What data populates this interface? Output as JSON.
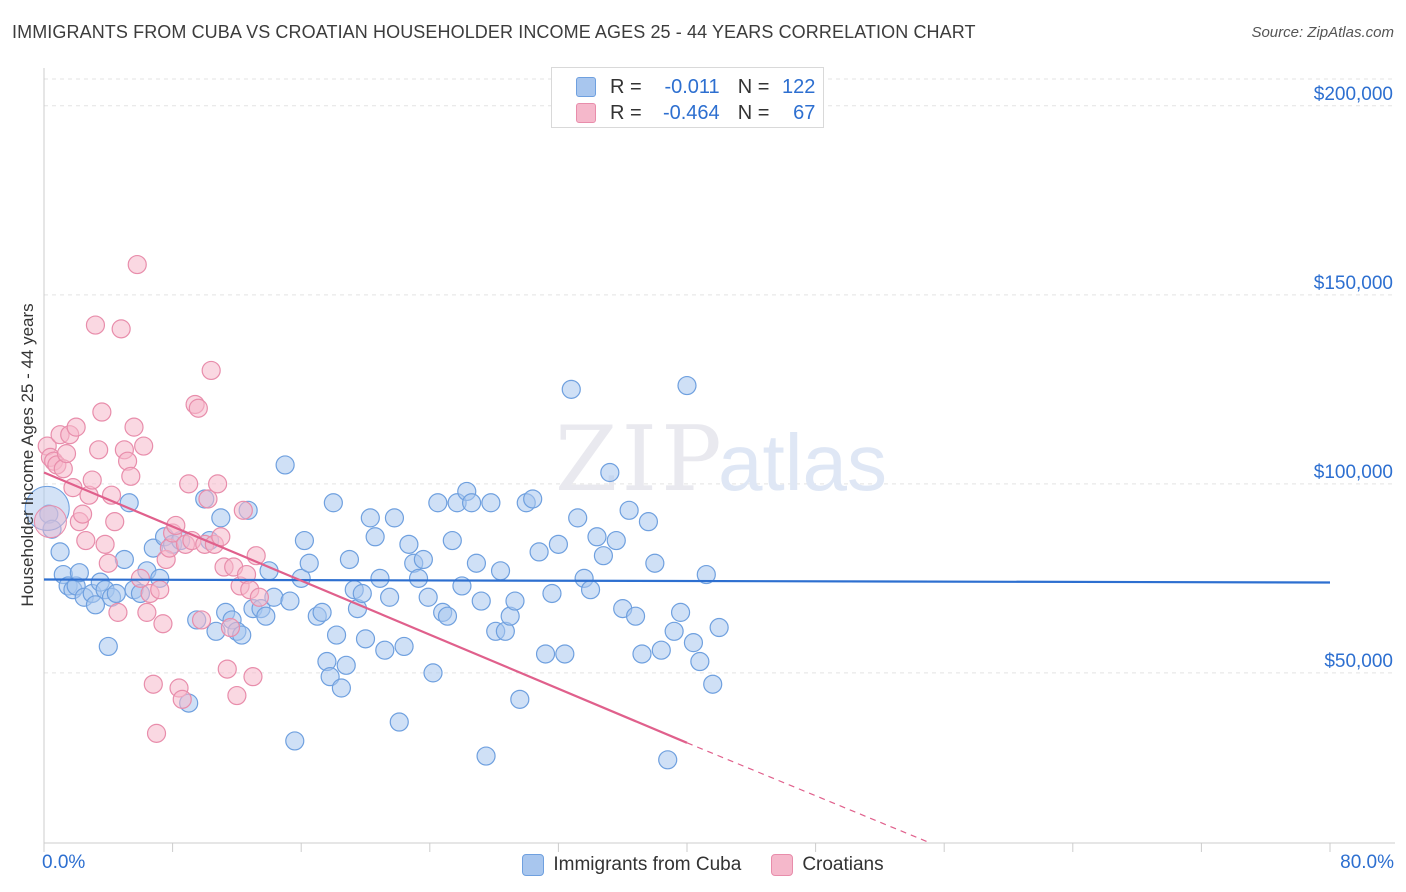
{
  "title": "IMMIGRANTS FROM CUBA VS CROATIAN HOUSEHOLDER INCOME AGES 25 - 44 YEARS CORRELATION CHART",
  "source": "Source: ZipAtlas.com",
  "watermark": {
    "zip": "ZIP",
    "atlas": "atlas"
  },
  "colors": {
    "blue": "#2d6fd0",
    "blue_fill": "#a8c6ee",
    "blue_stroke": "#6fa0df",
    "pink": "#e0608c",
    "pink_fill": "#f5b8cb",
    "pink_stroke": "#e88dab",
    "grid": "#e3e3e3"
  },
  "legend": {
    "rows": [
      {
        "r_label": "R =",
        "r_value": "-0.011",
        "n_label": "N =",
        "n_value": "122"
      },
      {
        "r_label": "R =",
        "r_value": "-0.464",
        "n_label": "N =",
        "n_value": "67"
      }
    ]
  },
  "bottom_legend": [
    "Immigrants from Cuba",
    "Croatians"
  ],
  "chart_data": {
    "type": "scatter",
    "title": "IMMIGRANTS FROM CUBA VS CROATIAN HOUSEHOLDER INCOME AGES 25 - 44 YEARS CORRELATION CHART",
    "xlabel": "",
    "ylabel": "Householder Income Ages 25 - 44 years",
    "xlim": [
      0,
      80
    ],
    "ylim": [
      5000,
      210000
    ],
    "x_tick_labels": [
      "0.0%",
      "80.0%"
    ],
    "y_ticks": [
      50000,
      100000,
      150000,
      200000
    ],
    "y_tick_labels": [
      "$50,000",
      "$100,000",
      "$150,000",
      "$200,000"
    ],
    "grid": true,
    "legend_position": "top-center",
    "series": [
      {
        "name": "Immigrants from Cuba",
        "color": "#6fa0df",
        "r": -0.011,
        "n": 122,
        "trend": {
          "x0": 0,
          "y0": 74700,
          "x1": 80,
          "y1": 73900
        },
        "points": [
          [
            0.3,
            92000
          ],
          [
            0.5,
            88000
          ],
          [
            1.0,
            82000
          ],
          [
            1.2,
            76000
          ],
          [
            1.5,
            73000
          ],
          [
            1.8,
            72000
          ],
          [
            2.0,
            73000
          ],
          [
            2.2,
            76500
          ],
          [
            2.5,
            70000
          ],
          [
            3.0,
            71000
          ],
          [
            3.2,
            68000
          ],
          [
            3.5,
            74000
          ],
          [
            3.8,
            72000
          ],
          [
            4.0,
            57000
          ],
          [
            4.2,
            70000
          ],
          [
            4.5,
            71000
          ],
          [
            5.0,
            80000
          ],
          [
            5.3,
            95000
          ],
          [
            5.6,
            72000
          ],
          [
            6.0,
            71000
          ],
          [
            6.4,
            77000
          ],
          [
            6.8,
            83000
          ],
          [
            7.2,
            75000
          ],
          [
            7.5,
            86000
          ],
          [
            8.0,
            84000
          ],
          [
            8.5,
            85000
          ],
          [
            9.0,
            42000
          ],
          [
            9.5,
            64000
          ],
          [
            10.0,
            96000
          ],
          [
            10.3,
            85000
          ],
          [
            10.7,
            61000
          ],
          [
            11.0,
            91000
          ],
          [
            11.3,
            66000
          ],
          [
            11.7,
            64000
          ],
          [
            12.0,
            61000
          ],
          [
            12.3,
            60000
          ],
          [
            12.7,
            93000
          ],
          [
            13.0,
            67000
          ],
          [
            13.5,
            67000
          ],
          [
            13.8,
            65000
          ],
          [
            14.0,
            77000
          ],
          [
            14.3,
            70000
          ],
          [
            15.0,
            105000
          ],
          [
            15.3,
            69000
          ],
          [
            15.6,
            32000
          ],
          [
            16.0,
            75000
          ],
          [
            16.2,
            85000
          ],
          [
            16.5,
            79000
          ],
          [
            17.0,
            65000
          ],
          [
            17.3,
            66000
          ],
          [
            17.6,
            53000
          ],
          [
            17.8,
            49000
          ],
          [
            18.0,
            95000
          ],
          [
            18.2,
            60000
          ],
          [
            18.5,
            46000
          ],
          [
            18.8,
            52000
          ],
          [
            19.0,
            80000
          ],
          [
            19.3,
            72000
          ],
          [
            19.5,
            67000
          ],
          [
            19.8,
            71000
          ],
          [
            20.0,
            59000
          ],
          [
            20.3,
            91000
          ],
          [
            20.6,
            86000
          ],
          [
            20.9,
            75000
          ],
          [
            21.2,
            56000
          ],
          [
            21.5,
            70000
          ],
          [
            21.8,
            91000
          ],
          [
            22.1,
            37000
          ],
          [
            22.4,
            57000
          ],
          [
            22.7,
            84000
          ],
          [
            23.0,
            79000
          ],
          [
            23.3,
            75000
          ],
          [
            23.6,
            80000
          ],
          [
            23.9,
            70000
          ],
          [
            24.2,
            50000
          ],
          [
            24.5,
            95000
          ],
          [
            24.8,
            66000
          ],
          [
            25.1,
            65000
          ],
          [
            25.4,
            85000
          ],
          [
            25.7,
            95000
          ],
          [
            26.0,
            73000
          ],
          [
            26.3,
            98000
          ],
          [
            26.6,
            95000
          ],
          [
            26.9,
            79000
          ],
          [
            27.2,
            69000
          ],
          [
            27.5,
            28000
          ],
          [
            27.8,
            95000
          ],
          [
            28.1,
            61000
          ],
          [
            28.4,
            77000
          ],
          [
            28.7,
            61000
          ],
          [
            29.0,
            65000
          ],
          [
            29.3,
            69000
          ],
          [
            29.6,
            43000
          ],
          [
            30.0,
            95000
          ],
          [
            30.4,
            96000
          ],
          [
            30.8,
            82000
          ],
          [
            31.2,
            55000
          ],
          [
            31.6,
            71000
          ],
          [
            32.0,
            84000
          ],
          [
            32.4,
            55000
          ],
          [
            32.8,
            125000
          ],
          [
            33.2,
            91000
          ],
          [
            33.6,
            75000
          ],
          [
            34.0,
            72000
          ],
          [
            34.4,
            86000
          ],
          [
            34.8,
            81000
          ],
          [
            35.2,
            103000
          ],
          [
            35.6,
            85000
          ],
          [
            36.0,
            67000
          ],
          [
            36.4,
            93000
          ],
          [
            36.8,
            65000
          ],
          [
            37.2,
            55000
          ],
          [
            37.6,
            90000
          ],
          [
            38.0,
            79000
          ],
          [
            38.4,
            56000
          ],
          [
            38.8,
            27000
          ],
          [
            39.2,
            61000
          ],
          [
            39.6,
            66000
          ],
          [
            40.0,
            126000
          ],
          [
            40.4,
            58000
          ],
          [
            40.8,
            53000
          ],
          [
            41.2,
            76000
          ],
          [
            41.6,
            47000
          ],
          [
            42.0,
            62000
          ]
        ]
      },
      {
        "name": "Croatians",
        "color": "#e88dab",
        "r": -0.464,
        "n": 67,
        "trend": {
          "x0": 0,
          "y0": 103000,
          "x1": 40,
          "y1": 31500
        },
        "trend_dashed": {
          "x0": 40,
          "y0": 31500,
          "x1": 58,
          "y1": 0
        },
        "points": [
          [
            0.2,
            110000
          ],
          [
            0.4,
            107000
          ],
          [
            0.6,
            106000
          ],
          [
            0.8,
            105000
          ],
          [
            1.0,
            113000
          ],
          [
            1.2,
            104000
          ],
          [
            1.4,
            108000
          ],
          [
            1.6,
            113000
          ],
          [
            1.8,
            99000
          ],
          [
            2.0,
            115000
          ],
          [
            2.2,
            90000
          ],
          [
            2.4,
            92000
          ],
          [
            2.6,
            85000
          ],
          [
            2.8,
            97000
          ],
          [
            3.0,
            101000
          ],
          [
            3.2,
            142000
          ],
          [
            3.4,
            109000
          ],
          [
            3.6,
            119000
          ],
          [
            3.8,
            84000
          ],
          [
            4.0,
            79000
          ],
          [
            4.2,
            97000
          ],
          [
            4.4,
            90000
          ],
          [
            4.6,
            66000
          ],
          [
            4.8,
            141000
          ],
          [
            5.0,
            109000
          ],
          [
            5.2,
            106000
          ],
          [
            5.4,
            102000
          ],
          [
            5.6,
            115000
          ],
          [
            5.8,
            158000
          ],
          [
            6.0,
            75000
          ],
          [
            6.2,
            110000
          ],
          [
            6.4,
            66000
          ],
          [
            6.6,
            71000
          ],
          [
            6.8,
            47000
          ],
          [
            7.0,
            34000
          ],
          [
            7.2,
            72000
          ],
          [
            7.4,
            63000
          ],
          [
            7.6,
            80000
          ],
          [
            7.8,
            83000
          ],
          [
            8.0,
            87000
          ],
          [
            8.2,
            89000
          ],
          [
            8.4,
            46000
          ],
          [
            8.6,
            43000
          ],
          [
            8.8,
            84000
          ],
          [
            9.0,
            100000
          ],
          [
            9.2,
            85000
          ],
          [
            9.4,
            121000
          ],
          [
            9.6,
            120000
          ],
          [
            9.8,
            64000
          ],
          [
            10.0,
            84000
          ],
          [
            10.2,
            96000
          ],
          [
            10.4,
            130000
          ],
          [
            10.6,
            84000
          ],
          [
            10.8,
            100000
          ],
          [
            11.0,
            86000
          ],
          [
            11.2,
            78000
          ],
          [
            11.4,
            51000
          ],
          [
            11.6,
            62000
          ],
          [
            11.8,
            78000
          ],
          [
            12.0,
            44000
          ],
          [
            12.2,
            73000
          ],
          [
            12.4,
            93000
          ],
          [
            12.6,
            76000
          ],
          [
            12.8,
            72000
          ],
          [
            13.0,
            49000
          ],
          [
            13.2,
            81000
          ],
          [
            13.4,
            70000
          ]
        ]
      }
    ]
  }
}
